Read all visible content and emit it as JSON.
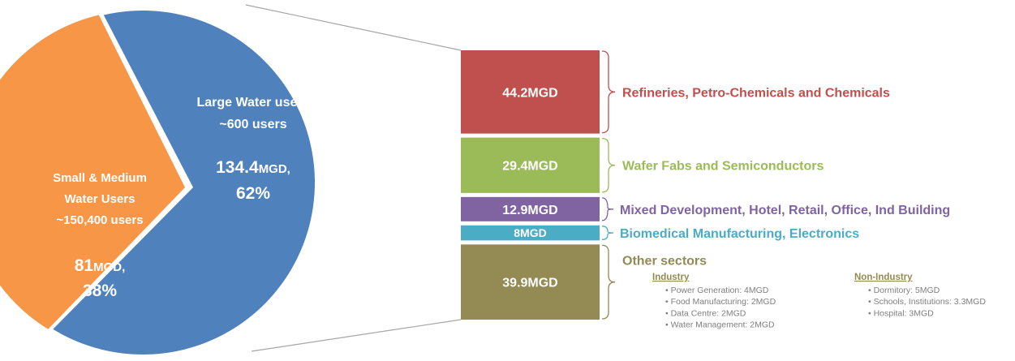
{
  "colors": {
    "large": "#4f81bd",
    "small": "#f79646",
    "refineries": "#c0504d",
    "wafer": "#9bbb59",
    "mixed": "#8064a2",
    "biomedical": "#4bacc6",
    "other": "#948a54",
    "others_text": "#7f7f7f",
    "connector": "#a6a6a6"
  },
  "chart_data": {
    "type": "pie",
    "unit": "MGD",
    "slices": [
      {
        "id": "large",
        "label_line1": "Large Water users",
        "label_line2": "~600 users",
        "value": 134.4,
        "value_text": "134.4",
        "unit_text": "MGD,",
        "percent_text": "62%"
      },
      {
        "id": "small",
        "label_line1": "Small & Medium",
        "label_line2": "Water Users",
        "label_line3": "~150,400 users",
        "value": 81,
        "value_text": "81",
        "unit_text": "MGD,",
        "percent_text": "38%"
      }
    ],
    "breakdown": {
      "of": "large",
      "type": "stacked-bar",
      "segments": [
        {
          "id": "refineries",
          "value": 44.2,
          "value_label": "44.2MGD",
          "name": "Refineries, Petro-Chemicals and Chemicals"
        },
        {
          "id": "wafer",
          "value": 29.4,
          "value_label": "29.4MGD",
          "name": "Wafer Fabs and Semiconductors"
        },
        {
          "id": "mixed",
          "value": 12.9,
          "value_label": "12.9MGD",
          "name": "Mixed Development, Hotel, Retail, Office, Ind Building"
        },
        {
          "id": "biomedical",
          "value": 8,
          "value_label": "8MGD",
          "name": "Biomedical Manufacturing, Electronics"
        },
        {
          "id": "other",
          "value": 39.9,
          "value_label": "39.9MGD",
          "name": "Other sectors"
        }
      ]
    },
    "other_sectors": {
      "industry": {
        "heading": "Industry",
        "items": [
          "Power Generation: 4MGD",
          "Food Manufacturing: 2MGD",
          "Data Centre: 2MGD",
          "Water Management: 2MGD"
        ]
      },
      "non_industry": {
        "heading": "Non-Industry",
        "items": [
          "Dormitory: 5MGD",
          "Schools, Institutions: 3.3MGD",
          "Hospital: 3MGD"
        ]
      }
    }
  }
}
